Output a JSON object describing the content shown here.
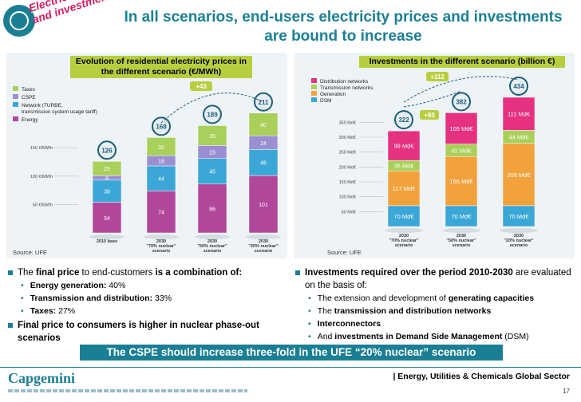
{
  "header": {
    "title_line1": "In all scenarios, end-users electricity prices and investments",
    "title_line2": "are bound to increase",
    "stamp_line1": "Electricity prices",
    "stamp_line2": "and investments"
  },
  "chart_data": [
    {
      "type": "bar",
      "title": "Evolution of residential electricity prices in the different scenario (€/MWh)",
      "categories": [
        "2010 base",
        "2030 \"70% nuclear\" scenario",
        "2030 \"50% nuclear\" scenario",
        "2030 \"20% nuclear\" scenario"
      ],
      "series": [
        {
          "name": "Energy",
          "values": [
            54,
            74,
            86,
            101
          ],
          "color": "#b0479b"
        },
        {
          "name": "Network (TURBE, transmission system usage tariff)",
          "values": [
            39,
            44,
            45,
            46
          ],
          "color": "#3aa7d6"
        },
        {
          "name": "CSPE",
          "values": [
            8,
            18,
            23,
            24
          ],
          "color": "#9b8fd1"
        },
        {
          "name": "Taxes",
          "values": [
            25,
            32,
            35,
            40
          ],
          "color": "#a9d05a"
        }
      ],
      "totals": [
        126,
        168,
        189,
        211
      ],
      "y_ticks": [
        "50 €/MWh",
        "100 €/MWh",
        "150 €/MWh"
      ],
      "ylim": [
        0,
        250
      ],
      "annotation": "+43",
      "source": "Source: UFE"
    },
    {
      "type": "bar",
      "title": "Investments in the different scenario (billion €)",
      "categories": [
        "2030 \"70% nuclear\" scenario",
        "2030 \"50% nuclear\" scenario",
        "2030 \"20% nuclear\" scenario"
      ],
      "series": [
        {
          "name": "DSM",
          "values": [
            70,
            70,
            70
          ],
          "color": "#3aa7d6",
          "labels": [
            "70 Md€",
            "70 Md€",
            "70 Md€"
          ]
        },
        {
          "name": "Generation",
          "values": [
            117,
            165,
            209
          ],
          "color": "#f2a23c",
          "labels": [
            "117 Md€",
            "165 Md€",
            "209 Md€"
          ]
        },
        {
          "name": "Transmission networks",
          "values": [
            35,
            42,
            44
          ],
          "color": "#a9d05a",
          "labels": [
            "35 Md€",
            "42 Md€",
            "44 Md€"
          ]
        },
        {
          "name": "Distribution networks",
          "values": [
            99,
            105,
            111
          ],
          "color": "#e5317f",
          "labels": [
            "99 Md€",
            "105 Md€",
            "111 Md€"
          ]
        }
      ],
      "totals": [
        322,
        382,
        434
      ],
      "y_ticks": [
        "50 Md€",
        "100 Md€",
        "150 Md€",
        "200 Md€",
        "250 Md€",
        "300 Md€",
        "350 Md€"
      ],
      "ylim": [
        0,
        450
      ],
      "annotations": [
        "+60",
        "+112"
      ],
      "source": "Source: UFE"
    }
  ],
  "left_text": {
    "b1_pre": "The ",
    "b1_bold1": "final price",
    "b1_mid": " to end-customers ",
    "b1_bold2": "is a combination of:",
    "s1_bold": "Energy generation:",
    "s1_val": " 40%",
    "s2_bold": "Transmission and distribution:",
    "s2_val": " 33%",
    "s3_bold": "Taxes:",
    "s3_val": " 27%",
    "b2": "Final price to consumers is higher in nuclear phase-out scenarios"
  },
  "right_text": {
    "b1_bold": "Investments required over the period 2010-2030",
    "b1_rest": " are evaluated on the basis of:",
    "s1_pre": "The extension and development of ",
    "s1_bold": "generating capacities",
    "s2_pre": "The ",
    "s2_bold": "transmission and distribution networks",
    "s3_bold": "Interconnectors",
    "s4_pre": "And ",
    "s4_bold": "investments in Demand Side Management",
    "s4_post": " (DSM)"
  },
  "banner": "The CSPE should increase three-fold in the UFE “20% nuclear” scenario",
  "footer": {
    "logo": "Capgemini",
    "sector": "| Energy, Utilities & Chemicals Global Sector",
    "page": "17"
  }
}
